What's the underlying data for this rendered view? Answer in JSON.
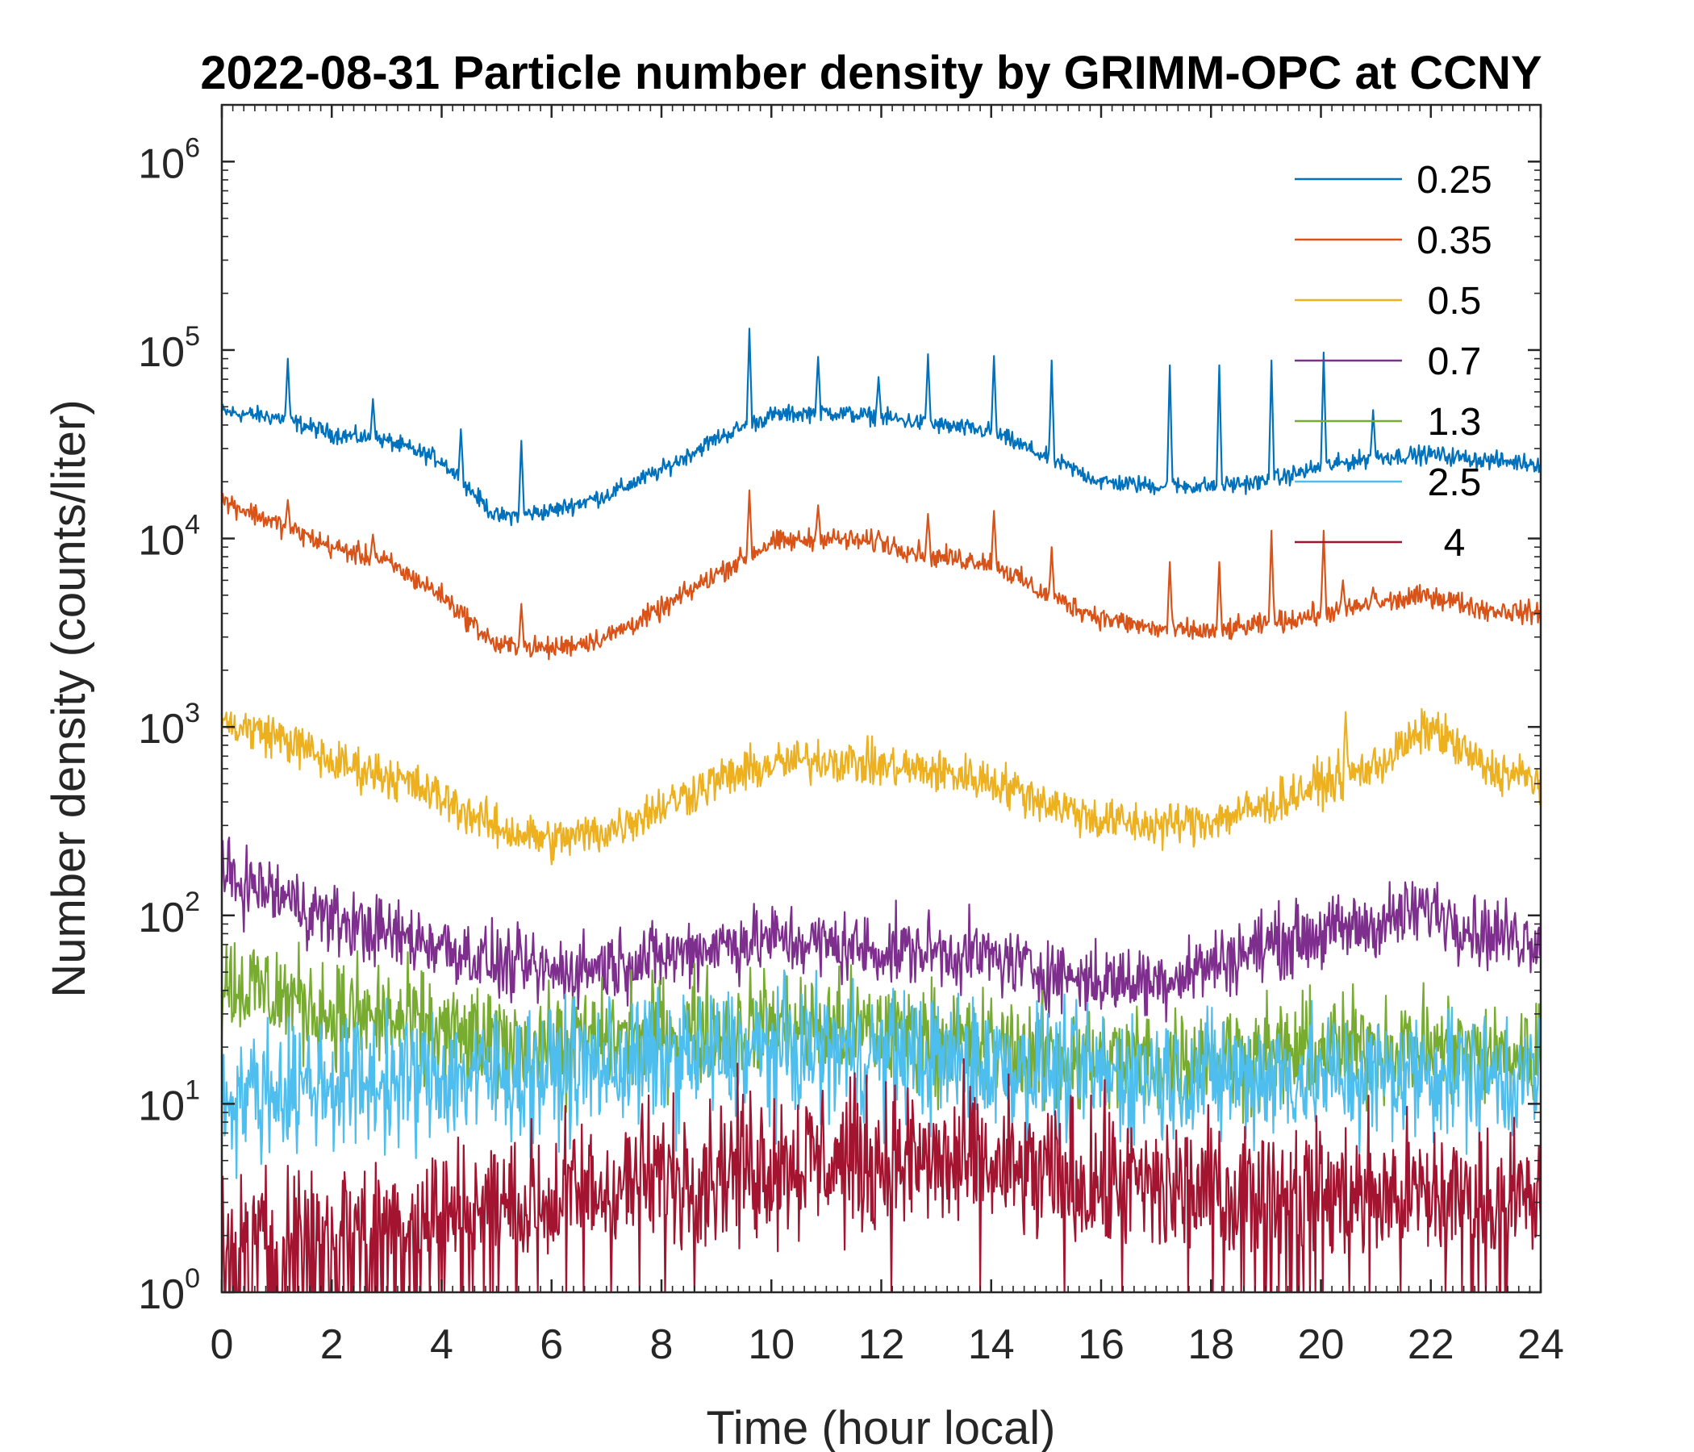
{
  "chart_data": {
    "type": "line",
    "title": "2022-08-31 Particle number density by GRIMM-OPC at CCNY",
    "xlabel": "Time (hour local)",
    "ylabel": "Number density (counts/liter)",
    "yscale": "log",
    "xlim": [
      0,
      24
    ],
    "ylim": [
      1,
      2000000
    ],
    "xticks": [
      "0",
      "2",
      "4",
      "6",
      "8",
      "10",
      "12",
      "14",
      "16",
      "18",
      "20",
      "22",
      "24"
    ],
    "yticks": [
      {
        "base": "10",
        "exp": "0",
        "value": 1
      },
      {
        "base": "10",
        "exp": "1",
        "value": 10
      },
      {
        "base": "10",
        "exp": "2",
        "value": 100
      },
      {
        "base": "10",
        "exp": "3",
        "value": 1000
      },
      {
        "base": "10",
        "exp": "4",
        "value": 10000
      },
      {
        "base": "10",
        "exp": "5",
        "value": 100000
      },
      {
        "base": "10",
        "exp": "6",
        "value": 1000000
      }
    ],
    "legend_position": "top-right",
    "series": [
      {
        "name": "0.25",
        "color": "#0072BD",
        "noise": 0.04,
        "x": [
          0,
          1,
          2,
          3,
          4,
          5,
          6,
          7,
          8,
          9,
          10,
          11,
          12,
          13,
          14,
          15,
          16,
          17,
          18,
          19,
          20,
          21,
          22,
          23,
          24
        ],
        "y": [
          47000,
          44000,
          36000,
          33000,
          26000,
          13000,
          14000,
          17000,
          23000,
          34000,
          45000,
          47000,
          44000,
          40000,
          37000,
          27000,
          20000,
          19000,
          19000,
          20000,
          24000,
          27000,
          28000,
          26000,
          25000
        ],
        "spikes": [
          [
            1.2,
            90000
          ],
          [
            2.75,
            55000
          ],
          [
            4.35,
            38000
          ],
          [
            5.45,
            33000
          ],
          [
            9.6,
            130000
          ],
          [
            10.85,
            92000
          ],
          [
            11.95,
            72000
          ],
          [
            12.85,
            95000
          ],
          [
            14.05,
            93000
          ],
          [
            15.1,
            88000
          ],
          [
            17.25,
            83000
          ],
          [
            18.15,
            83000
          ],
          [
            19.1,
            88000
          ],
          [
            20.05,
            97000
          ],
          [
            20.95,
            48000
          ]
        ]
      },
      {
        "name": "0.35",
        "color": "#D95319",
        "noise": 0.05,
        "x": [
          0,
          1,
          2,
          3,
          4,
          5,
          6,
          7,
          8,
          9,
          10,
          11,
          12,
          13,
          14,
          15,
          16,
          17,
          18,
          19,
          20,
          21,
          22,
          23,
          24
        ],
        "y": [
          16000,
          12000,
          9000,
          7500,
          5000,
          2700,
          2600,
          3000,
          4200,
          6500,
          9500,
          10000,
          9500,
          8000,
          7500,
          5000,
          3800,
          3300,
          3200,
          3500,
          4000,
          4500,
          5000,
          4200,
          4000
        ],
        "spikes": [
          [
            1.2,
            16000
          ],
          [
            2.75,
            10500
          ],
          [
            5.45,
            4500
          ],
          [
            9.6,
            18000
          ],
          [
            10.85,
            15000
          ],
          [
            11.95,
            11000
          ],
          [
            12.85,
            13500
          ],
          [
            14.05,
            14000
          ],
          [
            15.1,
            9000
          ],
          [
            17.25,
            7500
          ],
          [
            18.15,
            7500
          ],
          [
            19.1,
            11000
          ],
          [
            20.05,
            11000
          ],
          [
            20.4,
            6000
          ],
          [
            20.95,
            5500
          ]
        ]
      },
      {
        "name": "0.5",
        "color": "#EDB120",
        "noise": 0.1,
        "x": [
          0,
          1,
          2,
          3,
          4,
          5,
          6,
          7,
          8,
          9,
          10,
          11,
          12,
          13,
          14,
          15,
          16,
          17,
          18,
          19,
          20,
          21,
          22,
          23,
          24
        ],
        "y": [
          1050,
          900,
          650,
          560,
          420,
          290,
          250,
          280,
          380,
          520,
          630,
          680,
          620,
          580,
          520,
          400,
          320,
          300,
          320,
          380,
          500,
          620,
          1000,
          600,
          520
        ],
        "spikes": [
          [
            20.45,
            1200
          ]
        ]
      },
      {
        "name": "0.7",
        "color": "#7E2F8E",
        "noise": 0.16,
        "x": [
          0,
          1,
          2,
          3,
          4,
          5,
          6,
          7,
          8,
          9,
          10,
          11,
          12,
          13,
          14,
          15,
          16,
          17,
          18,
          19,
          20,
          21,
          22,
          23,
          24
        ],
        "y": [
          160,
          130,
          95,
          80,
          70,
          55,
          50,
          55,
          60,
          70,
          75,
          70,
          65,
          65,
          60,
          50,
          45,
          45,
          55,
          70,
          80,
          90,
          110,
          80,
          75
        ],
        "spikes": []
      },
      {
        "name": "1.3",
        "color": "#77AC30",
        "noise": 0.25,
        "x": [
          0,
          1,
          2,
          3,
          4,
          5,
          6,
          7,
          8,
          9,
          10,
          11,
          12,
          13,
          14,
          15,
          16,
          17,
          18,
          19,
          20,
          21,
          22,
          23,
          24
        ],
        "y": [
          45,
          38,
          30,
          28,
          24,
          20,
          20,
          22,
          24,
          25,
          26,
          25,
          24,
          22,
          20,
          18,
          17,
          17,
          18,
          18,
          19,
          20,
          20,
          18,
          18
        ],
        "spikes": []
      },
      {
        "name": "2.5",
        "color": "#4DBEEE",
        "noise": 0.3,
        "x": [
          0,
          1,
          2,
          3,
          4,
          5,
          6,
          7,
          8,
          9,
          10,
          11,
          12,
          13,
          14,
          15,
          16,
          17,
          18,
          19,
          20,
          21,
          22,
          23,
          24
        ],
        "y": [
          11,
          12,
          13,
          13,
          14,
          14,
          15,
          16,
          17,
          18,
          19,
          19,
          18,
          17,
          16,
          15,
          14,
          14,
          14,
          14,
          14,
          14,
          15,
          14,
          14
        ],
        "spikes": []
      },
      {
        "name": "4",
        "color": "#A2142F",
        "noise": 0.35,
        "x": [
          0,
          1,
          2,
          3,
          4,
          5,
          6,
          7,
          8,
          9,
          10,
          11,
          12,
          13,
          14,
          15,
          16,
          17,
          18,
          19,
          20,
          21,
          22,
          23,
          24
        ],
        "y": [
          1.5,
          1.8,
          2,
          2.2,
          2.5,
          2.8,
          3,
          3.5,
          4,
          4.5,
          5,
          5,
          5,
          4.8,
          4.5,
          4,
          3.8,
          3.5,
          3.3,
          3.2,
          3.2,
          3.2,
          3.2,
          3,
          3
        ],
        "spikes": []
      }
    ]
  }
}
